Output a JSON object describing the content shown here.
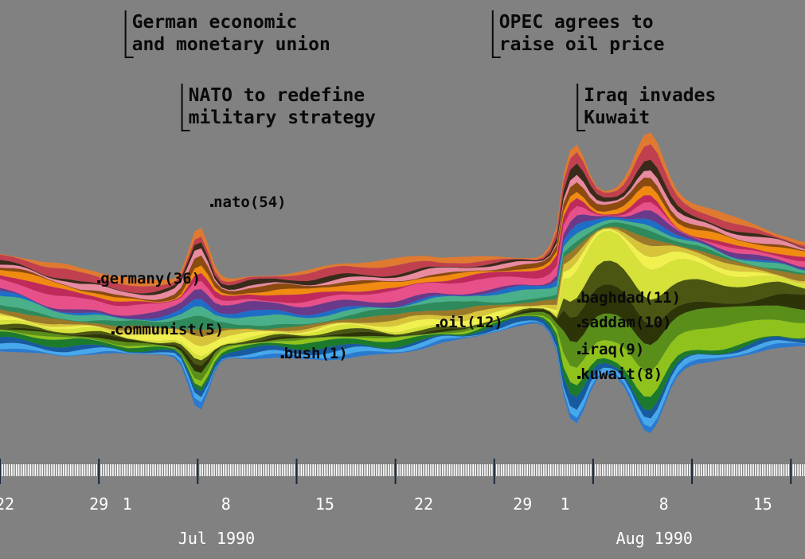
{
  "chart_data": {
    "type": "area",
    "subtype": "streamgraph (ThemeRiver) of news keyword frequency over time",
    "x_start": "1990-06-22",
    "x_end": "1990-08-18",
    "x_tick_labels": [
      "22",
      "29",
      "1",
      "8",
      "15",
      "22",
      "29",
      "1",
      "8",
      "15"
    ],
    "month_labels": [
      "Jul 1990",
      "Aug 1990"
    ],
    "events": [
      {
        "date": "1990-07-01",
        "line1": "German economic",
        "line2": "and monetary union"
      },
      {
        "date": "1990-07-05",
        "line1": "NATO to redefine",
        "line2": "military strategy"
      },
      {
        "date": "1990-07-27",
        "line1": "OPEC agrees to",
        "line2": "raise oil price"
      },
      {
        "date": "1990-08-02",
        "line1": "Iraq invades",
        "line2": "Kuwait"
      }
    ],
    "term_labels": [
      {
        "term": "nato",
        "count": 54,
        "text": "nato(54)"
      },
      {
        "term": "germany",
        "count": 36,
        "text": "germany(36)"
      },
      {
        "term": "communist",
        "count": 5,
        "text": "communist(5)"
      },
      {
        "term": "bush",
        "count": 1,
        "text": "bush(1)"
      },
      {
        "term": "oil",
        "count": 12,
        "text": "oil(12)"
      },
      {
        "term": "baghdad",
        "count": 11,
        "text": "baghdad(11)"
      },
      {
        "term": "saddam",
        "count": 10,
        "text": "saddam(10)"
      },
      {
        "term": "iraq",
        "count": 9,
        "text": "iraq(9)"
      },
      {
        "term": "kuwait",
        "count": 8,
        "text": "kuwait(8)"
      }
    ],
    "layers": [
      {
        "name": "kuwait",
        "color": "#1a6fc0"
      },
      {
        "name": "iraq",
        "color": "#8fc21d"
      },
      {
        "name": "saddam",
        "color": "#2c3408"
      },
      {
        "name": "baghdad",
        "color": "#d6e23a"
      },
      {
        "name": "bush",
        "color": "#4aa8e8"
      },
      {
        "name": "communist",
        "color": "#2e8a2e"
      },
      {
        "name": "oil",
        "color": "#f0f050"
      },
      {
        "name": "germany",
        "color": "#1e6ec8"
      },
      {
        "name": "nato",
        "color": "#e8508a"
      }
    ],
    "grid": false,
    "legend": "none"
  }
}
